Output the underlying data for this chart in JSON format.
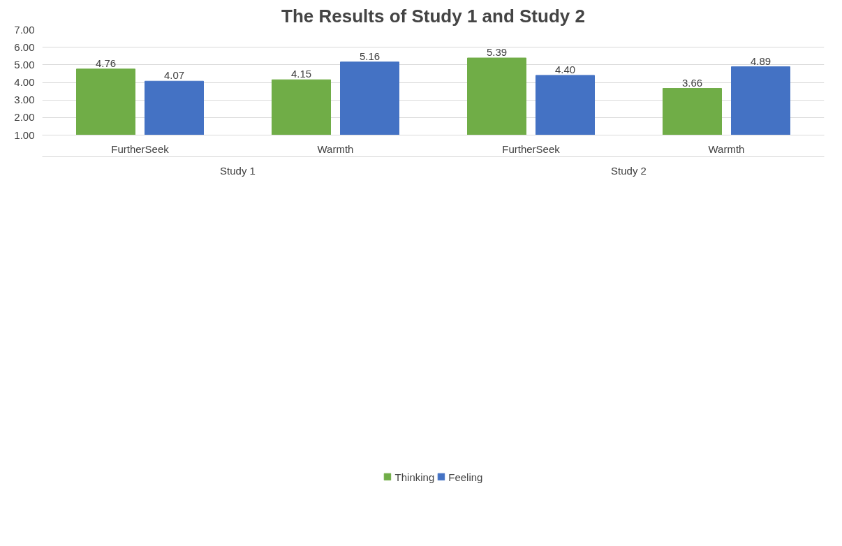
{
  "chart_data": {
    "type": "bar",
    "title": "The Results of Study 1 and Study 2",
    "categories": [
      "FurtherSeek",
      "Warmth",
      "FurtherSeek",
      "Warmth"
    ],
    "annotations": [
      "Study 1",
      "Study 2"
    ],
    "series": [
      {
        "name": "Thinking",
        "color": "#70ad47",
        "values": [
          4.76,
          4.15,
          5.39,
          3.66
        ],
        "value_labels": [
          "4.76",
          "4.15",
          "5.39",
          "3.66"
        ]
      },
      {
        "name": "Feeling",
        "color": "#4472c4",
        "values": [
          4.07,
          5.16,
          4.4,
          4.89
        ],
        "value_labels": [
          "4.07",
          "5.16",
          "4.40",
          "4.89"
        ]
      }
    ],
    "ylim": [
      1,
      7
    ],
    "yticks": [
      {
        "value": 1,
        "label": "1.00"
      },
      {
        "value": 2,
        "label": "2.00"
      },
      {
        "value": 3,
        "label": "3.00"
      },
      {
        "value": 4,
        "label": "4.00"
      },
      {
        "value": 5,
        "label": "5.00"
      },
      {
        "value": 6,
        "label": "6.00"
      },
      {
        "value": 7,
        "label": "7.00"
      }
    ],
    "grid": "y",
    "legend": "bottom"
  }
}
